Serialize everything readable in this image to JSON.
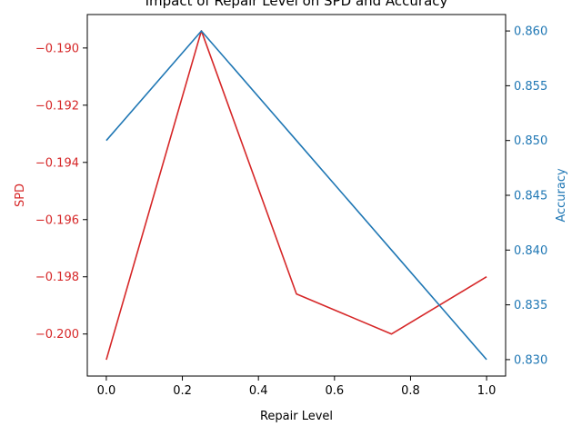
{
  "chart_data": {
    "type": "line",
    "title": "Impact of Repair Level on SPD and Accuracy",
    "xlabel": "Repair Level",
    "x": [
      0.0,
      0.25,
      0.5,
      0.75,
      1.0
    ],
    "xlim": [
      -0.05,
      1.05
    ],
    "xticks": [
      0.0,
      0.2,
      0.4,
      0.6,
      0.8,
      1.0
    ],
    "xtick_labels": [
      "0.0",
      "0.2",
      "0.4",
      "0.6",
      "0.8",
      "1.0"
    ],
    "grid": false,
    "series": [
      {
        "axis": "left",
        "color": "#d62728",
        "values": [
          -0.2009,
          -0.1894,
          -0.1986,
          -0.2,
          -0.198
        ]
      },
      {
        "axis": "right",
        "color": "#1f77b4",
        "values": [
          0.85,
          0.86,
          0.85,
          0.84,
          0.83
        ]
      }
    ],
    "left_axis": {
      "label": "SPD",
      "color": "#d62728",
      "ylim": [
        -0.20147,
        -0.18883
      ],
      "ticks": [
        -0.2,
        -0.198,
        -0.196,
        -0.194,
        -0.192,
        -0.19
      ],
      "tick_labels": [
        "−0.200",
        "−0.198",
        "−0.196",
        "−0.194",
        "−0.192",
        "−0.190"
      ]
    },
    "right_axis": {
      "label": "Accuracy",
      "color": "#1f77b4",
      "ylim": [
        0.8285,
        0.8615
      ],
      "ticks": [
        0.83,
        0.835,
        0.84,
        0.845,
        0.85,
        0.855,
        0.86
      ],
      "tick_labels": [
        "0.830",
        "0.835",
        "0.840",
        "0.845",
        "0.850",
        "0.855",
        "0.860"
      ]
    }
  }
}
